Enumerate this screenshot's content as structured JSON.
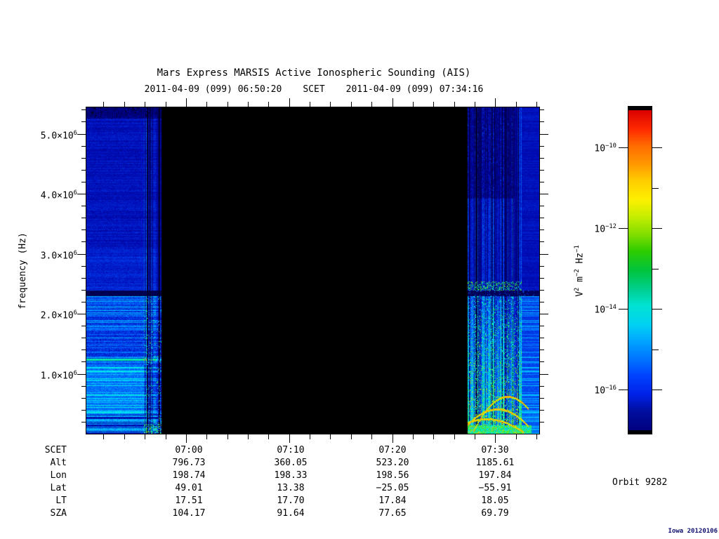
{
  "page": {
    "background": "#ffffff",
    "text_color": "#000000"
  },
  "chart_data": {
    "type": "heatmap",
    "title": "Mars Express MARSIS Active Ionospheric Sounding (AIS)",
    "subtitle": {
      "start_scet": "2011-04-09 (099) 06:50:20",
      "axis_caption": "SCET",
      "end_scet": "2011-04-09 (099) 07:34:16"
    },
    "x_axis": {
      "start_time": "06:50:20",
      "end_time": "07:34:16",
      "duration_seconds": 2636,
      "major_tick_labels": [
        "07:00",
        "07:10",
        "07:20",
        "07:30"
      ],
      "minor_tick_interval_minutes": 2
    },
    "y_axis": {
      "label": "frequency (Hz)",
      "range_hz": [
        0,
        5470000
      ],
      "major_ticks": [
        {
          "value_mhz": 5.0,
          "mantissa": "5.0×10",
          "exponent": "6"
        },
        {
          "value_mhz": 4.0,
          "mantissa": "4.0×10",
          "exponent": "6"
        },
        {
          "value_mhz": 3.0,
          "mantissa": "3.0×10",
          "exponent": "6"
        },
        {
          "value_mhz": 2.0,
          "mantissa": "2.0×10",
          "exponent": "6"
        },
        {
          "value_mhz": 1.0,
          "mantissa": "1.0×10",
          "exponent": "6"
        }
      ],
      "minor_tick_interval_hz": 200000
    },
    "colorbar": {
      "unit_parts": [
        {
          "base": "V",
          "exp": "2"
        },
        {
          "base": "m",
          "exp": "−2"
        },
        {
          "base": "Hz",
          "exp": "−1"
        }
      ],
      "tick_labels": [
        {
          "base": "10",
          "exp": "−10",
          "exponent": -10
        },
        {
          "base": "10",
          "exp": "−12",
          "exponent": -12
        },
        {
          "base": "10",
          "exp": "−14",
          "exponent": -14
        },
        {
          "base": "10",
          "exp": "−16",
          "exponent": -16
        }
      ],
      "minor_exponents": [
        -11,
        -13,
        -15
      ],
      "value_range": [
        "1e-17",
        "1e-9"
      ],
      "colors_top_to_bottom": [
        "#d80000",
        "#ff2a00",
        "#ff6a00",
        "#ff9900",
        "#ffcc00",
        "#fdf000",
        "#c8ee00",
        "#7fdd00",
        "#2ecc00",
        "#00c43c",
        "#00cf8e",
        "#00e2d2",
        "#00d2f2",
        "#00a6ff",
        "#0072ff",
        "#0042ff",
        "#0020e6",
        "#000f9e",
        "#000080"
      ]
    },
    "data_segments": [
      {
        "label": "sounding data",
        "time_range": [
          "06:50:20",
          "06:57:30"
        ]
      },
      {
        "label": "no data (black)",
        "time_range": [
          "06:57:30",
          "07:27:20"
        ]
      },
      {
        "label": "sounding data",
        "time_range": [
          "07:27:20",
          "07:34:16"
        ]
      }
    ],
    "features": {
      "absorption_band_hz": [
        2300000,
        2450000
      ],
      "bright_emission_line_hz": 1270000
    }
  },
  "ephemeris": {
    "rows": [
      {
        "label": "SCET",
        "values": [
          "07:00",
          "07:10",
          "07:20",
          "07:30"
        ]
      },
      {
        "label": "Alt",
        "values": [
          "796.73",
          "360.05",
          "523.20",
          "1185.61"
        ]
      },
      {
        "label": "Lon",
        "values": [
          "198.74",
          "198.33",
          "198.56",
          "197.84"
        ]
      },
      {
        "label": "Lat",
        "values": [
          "49.01",
          "13.38",
          "−25.05",
          "−55.91"
        ]
      },
      {
        "label": "LT",
        "values": [
          "17.51",
          "17.70",
          "17.84",
          "18.05"
        ]
      },
      {
        "label": "SZA",
        "values": [
          "104.17",
          "91.64",
          "77.65",
          "69.79"
        ]
      }
    ]
  },
  "annotations": {
    "orbit_label": "Orbit 9282",
    "version_stamp": "Iowa 20120106"
  }
}
